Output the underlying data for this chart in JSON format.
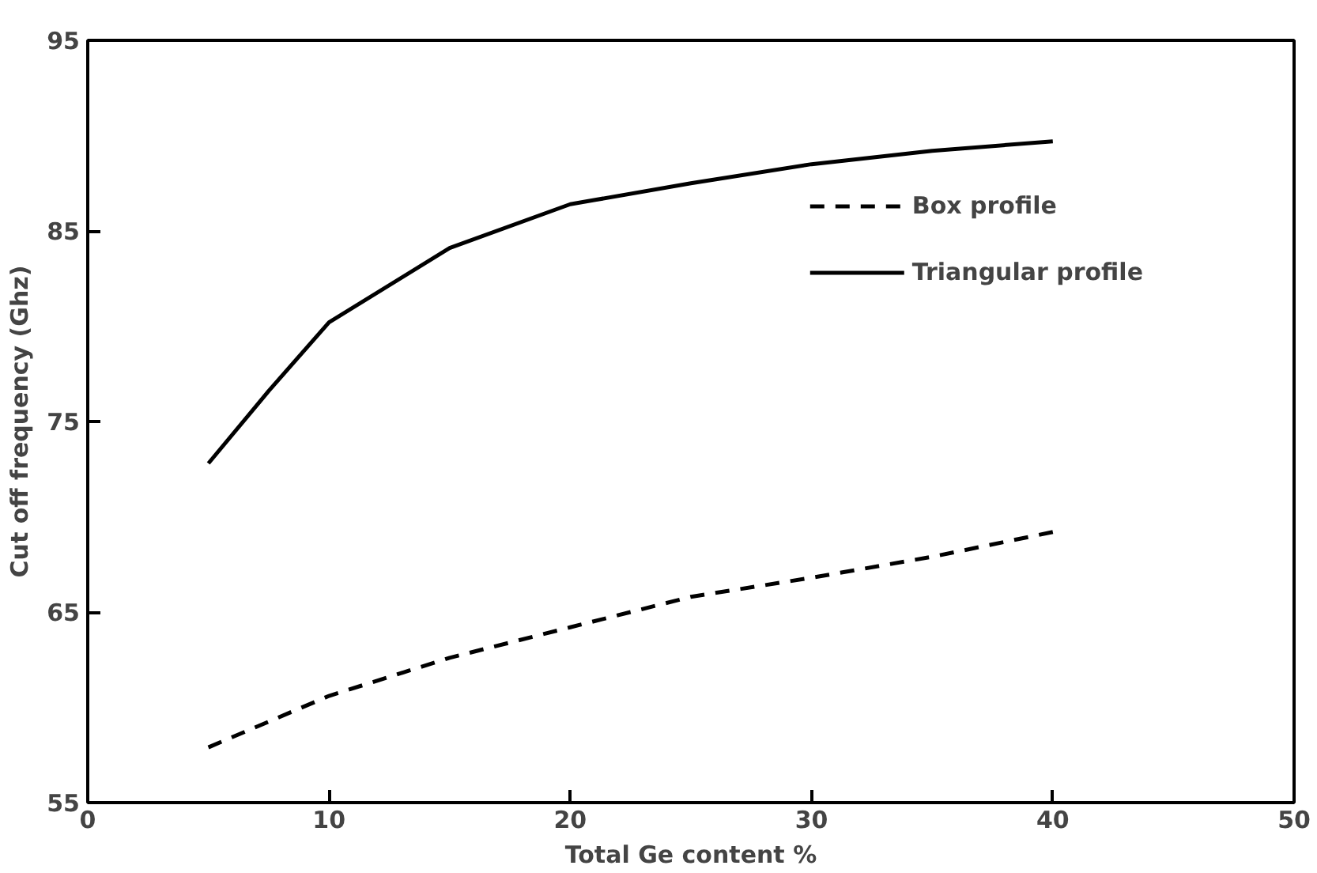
{
  "chart_data": {
    "type": "line",
    "xlabel": "Total Ge content %",
    "ylabel": "Cut off frequency (Ghz)",
    "xlim": [
      0,
      50
    ],
    "ylim": [
      55,
      95
    ],
    "xticks": [
      0,
      10,
      20,
      30,
      40,
      50
    ],
    "yticks": [
      55,
      65,
      75,
      85,
      95
    ],
    "grid": false,
    "legend": "top right",
    "series": [
      {
        "name": "Box profile",
        "color": "#000000",
        "line_style": "dashed",
        "x": [
          5,
          10,
          15,
          20,
          25,
          30,
          35,
          40
        ],
        "values": [
          57.9,
          60.6,
          62.6,
          64.2,
          65.8,
          66.8,
          67.9,
          69.2
        ]
      },
      {
        "name": "Triangular profile",
        "color": "#000000",
        "line_style": "solid",
        "x": [
          5,
          7.5,
          10,
          15,
          20,
          25,
          30,
          35,
          40
        ],
        "values": [
          72.8,
          76.6,
          80.2,
          84.1,
          86.4,
          87.5,
          88.5,
          89.2,
          89.7
        ]
      }
    ]
  }
}
